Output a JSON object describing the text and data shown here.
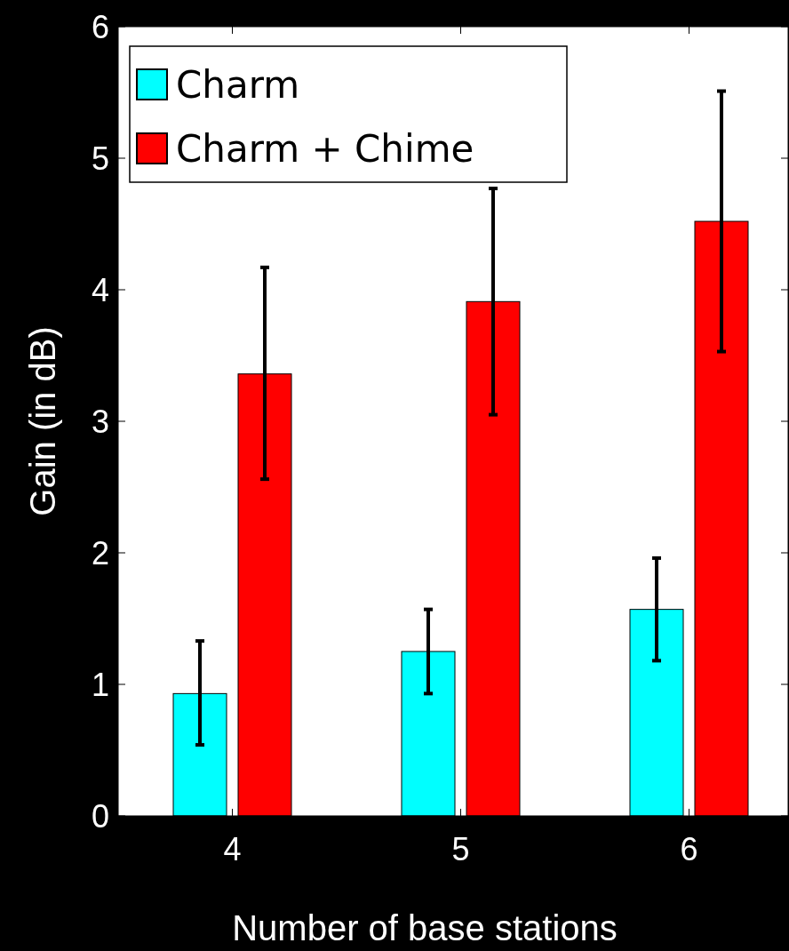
{
  "chart_data": {
    "type": "bar",
    "xlabel": "Number of base stations",
    "ylabel": "Gain (in dB)",
    "categories": [
      "4",
      "5",
      "6"
    ],
    "series": [
      {
        "name": "Charm",
        "color": "#00ffff",
        "values": [
          0.93,
          1.25,
          1.57
        ],
        "errors": [
          [
            0.54,
            1.33
          ],
          [
            0.93,
            1.57
          ],
          [
            1.18,
            1.96
          ]
        ]
      },
      {
        "name": "Charm + Chime",
        "color": "#ff0000",
        "values": [
          3.36,
          3.91,
          4.52
        ],
        "errors": [
          [
            2.56,
            4.17
          ],
          [
            3.05,
            4.77
          ],
          [
            3.53,
            5.51
          ]
        ]
      }
    ],
    "ylim": [
      0,
      6
    ],
    "yticks": [
      0,
      1,
      2,
      3,
      4,
      5,
      6
    ],
    "legend": "top left"
  }
}
